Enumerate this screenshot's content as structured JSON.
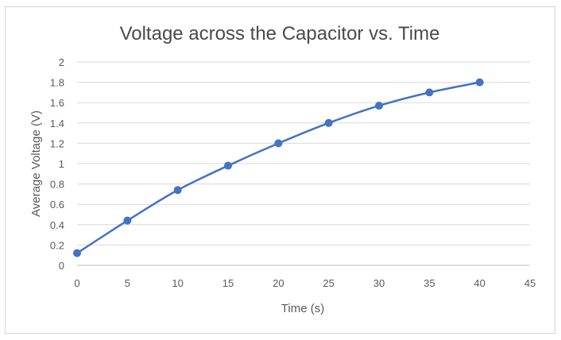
{
  "chart_data": {
    "type": "scatter",
    "title": "Voltage across the Capacitor vs. Time",
    "xlabel": "Time (s)",
    "ylabel": "Average Voltage (V)",
    "xlim": [
      0,
      45
    ],
    "ylim": [
      0,
      2
    ],
    "x_ticks": [
      0,
      5,
      10,
      15,
      20,
      25,
      30,
      35,
      40,
      45
    ],
    "y_ticks": [
      0,
      0.2,
      0.4,
      0.6,
      0.8,
      1,
      1.2,
      1.4,
      1.6,
      1.8,
      2
    ],
    "grid": true,
    "legend": "none",
    "series": [
      {
        "name": "Average Voltage",
        "color": "#4472c4",
        "line": "smoothed",
        "x": [
          0,
          5,
          10,
          15,
          20,
          25,
          30,
          35,
          40
        ],
        "y": [
          0.12,
          0.44,
          0.74,
          0.98,
          1.2,
          1.4,
          1.57,
          1.7,
          1.8
        ]
      }
    ]
  }
}
